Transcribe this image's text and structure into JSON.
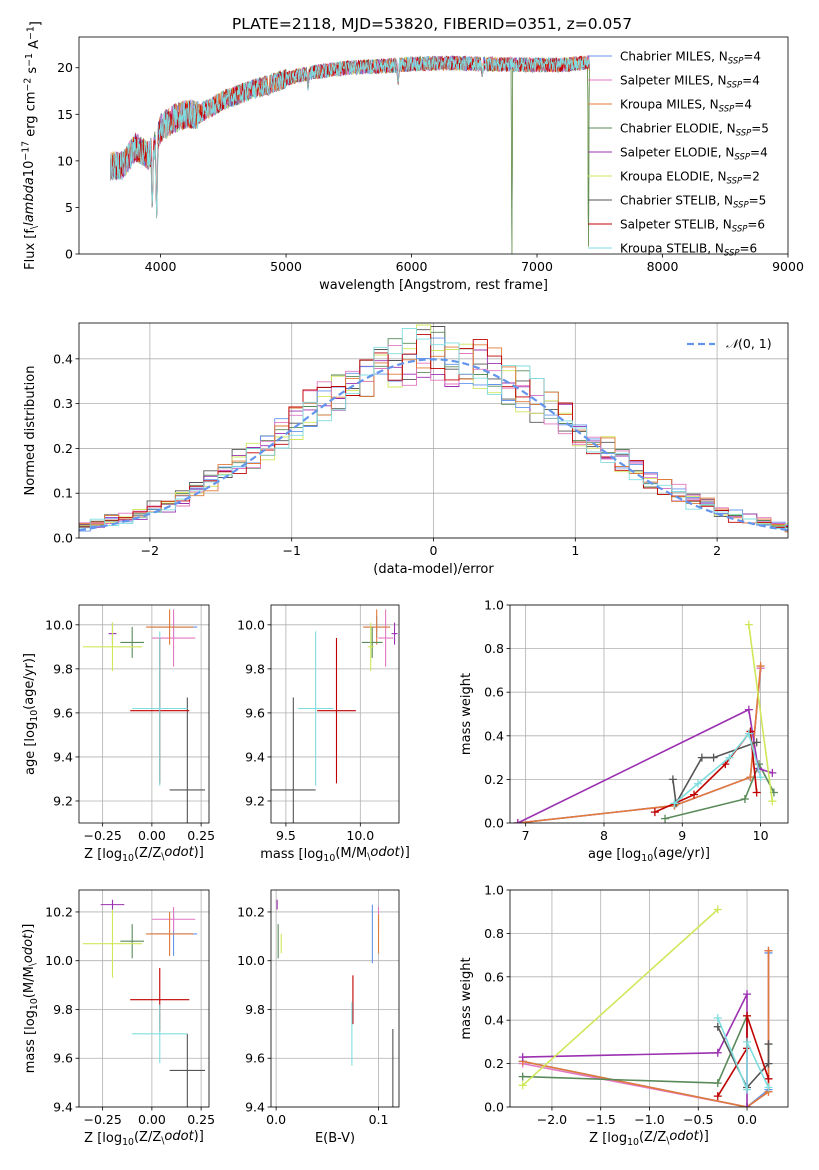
{
  "figure": {
    "title": "PLATE=2118, MJD=53820, FIBERID=0351, z=0.057"
  },
  "models": [
    {
      "name": "Chabrier MILES, N$_{SSP}$=4",
      "label_main": "Chabrier MILES, N",
      "label_sub": "SSP",
      "label_end": "=4",
      "color": "#6495ed"
    },
    {
      "name": "Salpeter MILES, N$_{SSP}$=4",
      "label_main": "Salpeter MILES, N",
      "label_sub": "SSP",
      "label_end": "=4",
      "color": "#e377c2"
    },
    {
      "name": "Kroupa MILES, N$_{SSP}$=4",
      "label_main": "Kroupa MILES, N",
      "label_sub": "SSP",
      "label_end": "=4",
      "color": "#e07b39"
    },
    {
      "name": "Chabrier ELODIE, N$_{SSP}$=5",
      "label_main": "Chabrier ELODIE, N",
      "label_sub": "SSP",
      "label_end": "=5",
      "color": "#5a8a5a"
    },
    {
      "name": "Salpeter ELODIE, N$_{SSP}$=4",
      "label_main": "Salpeter ELODIE, N",
      "label_sub": "SSP",
      "label_end": "=4",
      "color": "#9b30b0"
    },
    {
      "name": "Kroupa ELODIE, N$_{SSP}$=2",
      "label_main": "Kroupa ELODIE, N",
      "label_sub": "SSP",
      "label_end": "=2",
      "color": "#cfe85a"
    },
    {
      "name": "Chabrier STELIB, N$_{SSP}$=5",
      "label_main": "Chabrier STELIB, N",
      "label_sub": "SSP",
      "label_end": "=5",
      "color": "#555555"
    },
    {
      "name": "Salpeter STELIB, N$_{SSP}$=6",
      "label_main": "Salpeter STELIB, N",
      "label_sub": "SSP",
      "label_end": "=6",
      "color": "#c00000"
    },
    {
      "name": "Kroupa STELIB, N$_{SSP}$=6",
      "label_main": "Kroupa STELIB, N",
      "label_sub": "SSP",
      "label_end": "=6",
      "color": "#7fdde0"
    }
  ],
  "chart_data": [
    {
      "id": "spectrum",
      "type": "line",
      "xlabel": "wavelength [Angstrom, rest frame]",
      "ylabel": "Flux [f$_\\lambda$10$^{-17}$ erg cm$^{-2}$ s$^{-1}$ A$^{-1}$]",
      "xlim": [
        3350,
        9000
      ],
      "ylim": [
        0,
        23.3
      ],
      "xticks": [
        4000,
        5000,
        6000,
        7000,
        8000,
        9000
      ],
      "yticks": [
        0,
        5,
        10,
        15,
        20
      ],
      "grid": false,
      "legend": "upper-right",
      "x_range": [
        3600,
        7420
      ],
      "continuum_x": [
        3600,
        3700,
        3800,
        3900,
        3950,
        4000,
        4100,
        4200,
        4300,
        4500,
        4700,
        5000,
        5200,
        5500,
        5800,
        6000,
        6300,
        6600,
        7000,
        7200,
        7420
      ],
      "continuum_y": [
        9.5,
        9.5,
        11.5,
        10.5,
        11.5,
        13.5,
        14.5,
        15,
        15,
        16.5,
        17.5,
        18.8,
        19.5,
        20,
        20.2,
        20.4,
        20.5,
        20.4,
        20.3,
        20.3,
        20.6
      ],
      "dips": [
        [
          3934,
          4.0
        ],
        [
          3969,
          3.0
        ],
        [
          4861,
          17.0
        ],
        [
          5175,
          17.5
        ],
        [
          5893,
          18.0
        ],
        [
          6563,
          19.0
        ],
        [
          6800,
          0.0
        ],
        [
          7410,
          0.0
        ]
      ]
    },
    {
      "id": "residuals",
      "type": "area",
      "xlabel": "(data-model)/error",
      "ylabel": "Normed distribution",
      "xlim": [
        -2.5,
        2.5
      ],
      "ylim": [
        0,
        0.48
      ],
      "xticks": [
        -2,
        -1,
        0,
        1,
        2
      ],
      "yticks": [
        0,
        0.1,
        0.2,
        0.3,
        0.4
      ],
      "grid": true,
      "legend": "upper-right",
      "legend_label_text": "(0, 1)",
      "bin_width": 0.1,
      "reference": "normal(0,1)"
    },
    {
      "id": "age-vs-Z",
      "type": "scatter",
      "xlabel": "Z [log$_{10}$(Z/Z$_\\odot$)]",
      "ylabel": "age  [log$_{10}$(age/yr)]",
      "xlim": [
        -0.37,
        0.29
      ],
      "ylim": [
        9.1,
        10.09
      ],
      "xticks": [
        -0.25,
        0,
        0.25
      ],
      "yticks": [
        9.2,
        9.4,
        9.6,
        9.8,
        10.0
      ],
      "grid": true,
      "points": [
        {
          "model": 0,
          "x": 0.11,
          "y": 9.99,
          "xerr": 0.12,
          "yerr": 0.05
        },
        {
          "model": 1,
          "x": 0.11,
          "y": 9.94,
          "xerr": 0.11,
          "yerr": 0.13
        },
        {
          "model": 2,
          "x": 0.09,
          "y": 9.99,
          "xerr": 0.12,
          "yerr": 0.08
        },
        {
          "model": 3,
          "x": -0.1,
          "y": 9.92,
          "xerr": 0.06,
          "yerr": 0.07
        },
        {
          "model": 4,
          "x": -0.2,
          "y": 9.96,
          "xerr": 0.02,
          "yerr": 0.05
        },
        {
          "model": 5,
          "x": -0.2,
          "y": 9.9,
          "xerr": 0.15,
          "yerr": 0.11
        },
        {
          "model": 6,
          "x": 0.18,
          "y": 9.25,
          "xerr": 0.09,
          "yerr": 0.42
        },
        {
          "model": 7,
          "x": 0.04,
          "y": 9.61,
          "xerr": 0.15,
          "yerr": 0.33
        },
        {
          "model": 8,
          "x": 0.04,
          "y": 9.62,
          "xerr": 0.14,
          "yerr": 0.35
        }
      ]
    },
    {
      "id": "age-vs-mass",
      "type": "scatter",
      "xlabel": "mass [log$_{10}$(M/M$_\\odot$)]",
      "ylabel": "",
      "xlim": [
        9.4,
        10.26
      ],
      "ylim": [
        9.1,
        10.09
      ],
      "xticks": [
        9.5,
        10.0
      ],
      "yticks": [
        9.2,
        9.4,
        9.6,
        9.8,
        10.0
      ],
      "grid": true,
      "points": [
        {
          "model": 0,
          "x": 10.11,
          "y": 9.99,
          "xerr": 0.09,
          "yerr": 0.05
        },
        {
          "model": 1,
          "x": 10.17,
          "y": 9.94,
          "xerr": 0.05,
          "yerr": 0.13
        },
        {
          "model": 2,
          "x": 10.11,
          "y": 9.99,
          "xerr": 0.09,
          "yerr": 0.08
        },
        {
          "model": 3,
          "x": 10.08,
          "y": 9.92,
          "xerr": 0.07,
          "yerr": 0.07
        },
        {
          "model": 4,
          "x": 10.23,
          "y": 9.96,
          "xerr": 0.02,
          "yerr": 0.05
        },
        {
          "model": 5,
          "x": 10.07,
          "y": 9.9,
          "xerr": 0.02,
          "yerr": 0.11
        },
        {
          "model": 6,
          "x": 9.55,
          "y": 9.25,
          "xerr": 0.15,
          "yerr": 0.42
        },
        {
          "model": 7,
          "x": 9.84,
          "y": 9.61,
          "xerr": 0.13,
          "yerr": 0.33
        },
        {
          "model": 8,
          "x": 9.7,
          "y": 9.62,
          "xerr": 0.12,
          "yerr": 0.35
        }
      ]
    },
    {
      "id": "massweight-vs-age",
      "type": "line",
      "xlabel": "age  [log$_{10}$(age/yr)]",
      "ylabel": "mass weight",
      "xlim": [
        6.8,
        10.35
      ],
      "ylim": [
        0,
        1.0
      ],
      "xticks": [
        7,
        8,
        9,
        10
      ],
      "yticks": [
        0,
        0.2,
        0.4,
        0.6,
        0.8,
        1.0
      ],
      "grid": true,
      "series": [
        {
          "model": 0,
          "x": [
            6.9,
            8.9,
            9.87,
            10.0
          ],
          "y": [
            0.0,
            0.08,
            0.21,
            0.71
          ]
        },
        {
          "model": 1,
          "x": [
            6.9,
            8.9,
            9.87,
            10.0
          ],
          "y": [
            0.0,
            0.08,
            0.21,
            0.71
          ]
        },
        {
          "model": 2,
          "x": [
            6.9,
            8.9,
            9.87,
            10.0
          ],
          "y": [
            0.0,
            0.08,
            0.21,
            0.72
          ]
        },
        {
          "model": 3,
          "x": [
            8.78,
            9.8,
            9.98,
            10.17
          ],
          "y": [
            0.02,
            0.11,
            0.27,
            0.14
          ]
        },
        {
          "model": 4,
          "x": [
            6.9,
            9.85,
            9.97,
            10.15
          ],
          "y": [
            0.0,
            0.52,
            0.25,
            0.23
          ]
        },
        {
          "model": 5,
          "x": [
            9.85,
            10.15
          ],
          "y": [
            0.91,
            0.1
          ]
        },
        {
          "model": 6,
          "x": [
            8.88,
            8.92,
            9.25,
            9.4,
            9.95
          ],
          "y": [
            0.2,
            0.09,
            0.3,
            0.3,
            0.37
          ]
        },
        {
          "model": 7,
          "x": [
            8.65,
            9.15,
            9.55,
            9.87,
            9.95
          ],
          "y": [
            0.05,
            0.13,
            0.27,
            0.42,
            0.14
          ]
        },
        {
          "model": 8,
          "x": [
            8.9,
            9.2,
            9.6,
            9.85,
            10.0
          ],
          "y": [
            0.09,
            0.18,
            0.3,
            0.41,
            0.21
          ]
        }
      ]
    },
    {
      "id": "mass-vs-Z",
      "type": "scatter",
      "xlabel": "Z [log$_{10}$(Z/Z$_\\odot$)]",
      "ylabel": "mass [log$_{10}$(M/M$_\\odot$)]",
      "xlim": [
        -0.37,
        0.29
      ],
      "ylim": [
        9.4,
        10.29
      ],
      "xticks": [
        -0.25,
        0,
        0.25
      ],
      "yticks": [
        9.4,
        9.6,
        9.8,
        10.0,
        10.2
      ],
      "grid": true,
      "points": [
        {
          "model": 0,
          "x": 0.11,
          "y": 10.11,
          "xerr": 0.12,
          "yerr": 0.09
        },
        {
          "model": 1,
          "x": 0.11,
          "y": 10.17,
          "xerr": 0.11,
          "yerr": 0.05
        },
        {
          "model": 2,
          "x": 0.09,
          "y": 10.11,
          "xerr": 0.12,
          "yerr": 0.09
        },
        {
          "model": 3,
          "x": -0.1,
          "y": 10.08,
          "xerr": 0.06,
          "yerr": 0.07
        },
        {
          "model": 4,
          "x": -0.2,
          "y": 10.23,
          "xerr": 0.06,
          "yerr": 0.02
        },
        {
          "model": 5,
          "x": -0.2,
          "y": 10.07,
          "xerr": 0.15,
          "yerr": 0.14
        },
        {
          "model": 6,
          "x": 0.18,
          "y": 9.55,
          "xerr": 0.09,
          "yerr": 0.15
        },
        {
          "model": 7,
          "x": 0.04,
          "y": 9.84,
          "xerr": 0.15,
          "yerr": 0.13
        },
        {
          "model": 8,
          "x": 0.04,
          "y": 9.7,
          "xerr": 0.14,
          "yerr": 0.12
        }
      ]
    },
    {
      "id": "mass-vs-EBV",
      "type": "scatter",
      "xlabel": "E(B-V)",
      "ylabel": "",
      "xlim": [
        -0.005,
        0.12
      ],
      "ylim": [
        9.4,
        10.29
      ],
      "xticks": [
        0.0,
        0.1
      ],
      "yticks": [
        9.4,
        9.6,
        9.8,
        10.0,
        10.2
      ],
      "grid": true,
      "points": [
        {
          "model": 0,
          "x": 0.094,
          "y": 10.11,
          "xerr": 0,
          "yerr": 0.12
        },
        {
          "model": 1,
          "x": 0.1,
          "y": 10.17,
          "xerr": 0,
          "yerr": 0.05
        },
        {
          "model": 2,
          "x": 0.1,
          "y": 10.11,
          "xerr": 0,
          "yerr": 0.08
        },
        {
          "model": 3,
          "x": 0.002,
          "y": 10.08,
          "xerr": 0,
          "yerr": 0.07
        },
        {
          "model": 4,
          "x": 0.001,
          "y": 10.23,
          "xerr": 0,
          "yerr": 0.02
        },
        {
          "model": 5,
          "x": 0.005,
          "y": 10.07,
          "xerr": 0,
          "yerr": 0.04
        },
        {
          "model": 6,
          "x": 0.114,
          "y": 9.55,
          "xerr": 0,
          "yerr": 0.17
        },
        {
          "model": 7,
          "x": 0.075,
          "y": 9.84,
          "xerr": 0,
          "yerr": 0.1
        },
        {
          "model": 8,
          "x": 0.074,
          "y": 9.7,
          "xerr": 0,
          "yerr": 0.13
        }
      ]
    },
    {
      "id": "massweight-vs-Z",
      "type": "line",
      "xlabel": "Z [log$_{10}$(Z/Z$_\\odot$)]",
      "ylabel": "mass weight",
      "xlim": [
        -2.43,
        0.42
      ],
      "ylim": [
        0,
        1.0
      ],
      "xticks": [
        -2.0,
        -1.5,
        -1.0,
        -0.5,
        0.0
      ],
      "yticks": [
        0,
        0.2,
        0.4,
        0.6,
        0.8,
        1.0
      ],
      "grid": true,
      "series": [
        {
          "model": 0,
          "x": [
            -2.3,
            0.0,
            0.22,
            0.22
          ],
          "y": [
            0.21,
            0.0,
            0.08,
            0.71
          ]
        },
        {
          "model": 1,
          "x": [
            -2.3,
            0.0,
            0.22,
            0.22
          ],
          "y": [
            0.2,
            0.0,
            0.07,
            0.72
          ]
        },
        {
          "model": 2,
          "x": [
            -2.3,
            0.0,
            0.22,
            0.22
          ],
          "y": [
            0.21,
            0.0,
            0.07,
            0.72
          ]
        },
        {
          "model": 3,
          "x": [
            -2.3,
            -0.3,
            0.0,
            0.0
          ],
          "y": [
            0.14,
            0.11,
            0.42,
            0.27
          ]
        },
        {
          "model": 4,
          "x": [
            -2.3,
            -0.3,
            0.0,
            0.0
          ],
          "y": [
            0.23,
            0.25,
            0.52,
            0.0
          ]
        },
        {
          "model": 5,
          "x": [
            -2.3,
            -0.3
          ],
          "y": [
            0.1,
            0.91
          ]
        },
        {
          "model": 6,
          "x": [
            -0.3,
            0.0,
            0.22,
            0.22
          ],
          "y": [
            0.37,
            0.09,
            0.2,
            0.29
          ]
        },
        {
          "model": 7,
          "x": [
            -0.3,
            0.0,
            0.0,
            0.22
          ],
          "y": [
            0.05,
            0.27,
            0.42,
            0.13
          ]
        },
        {
          "model": 8,
          "x": [
            -0.3,
            0.0,
            0.0,
            0.22
          ],
          "y": [
            0.41,
            0.08,
            0.3,
            0.09
          ]
        }
      ]
    }
  ]
}
